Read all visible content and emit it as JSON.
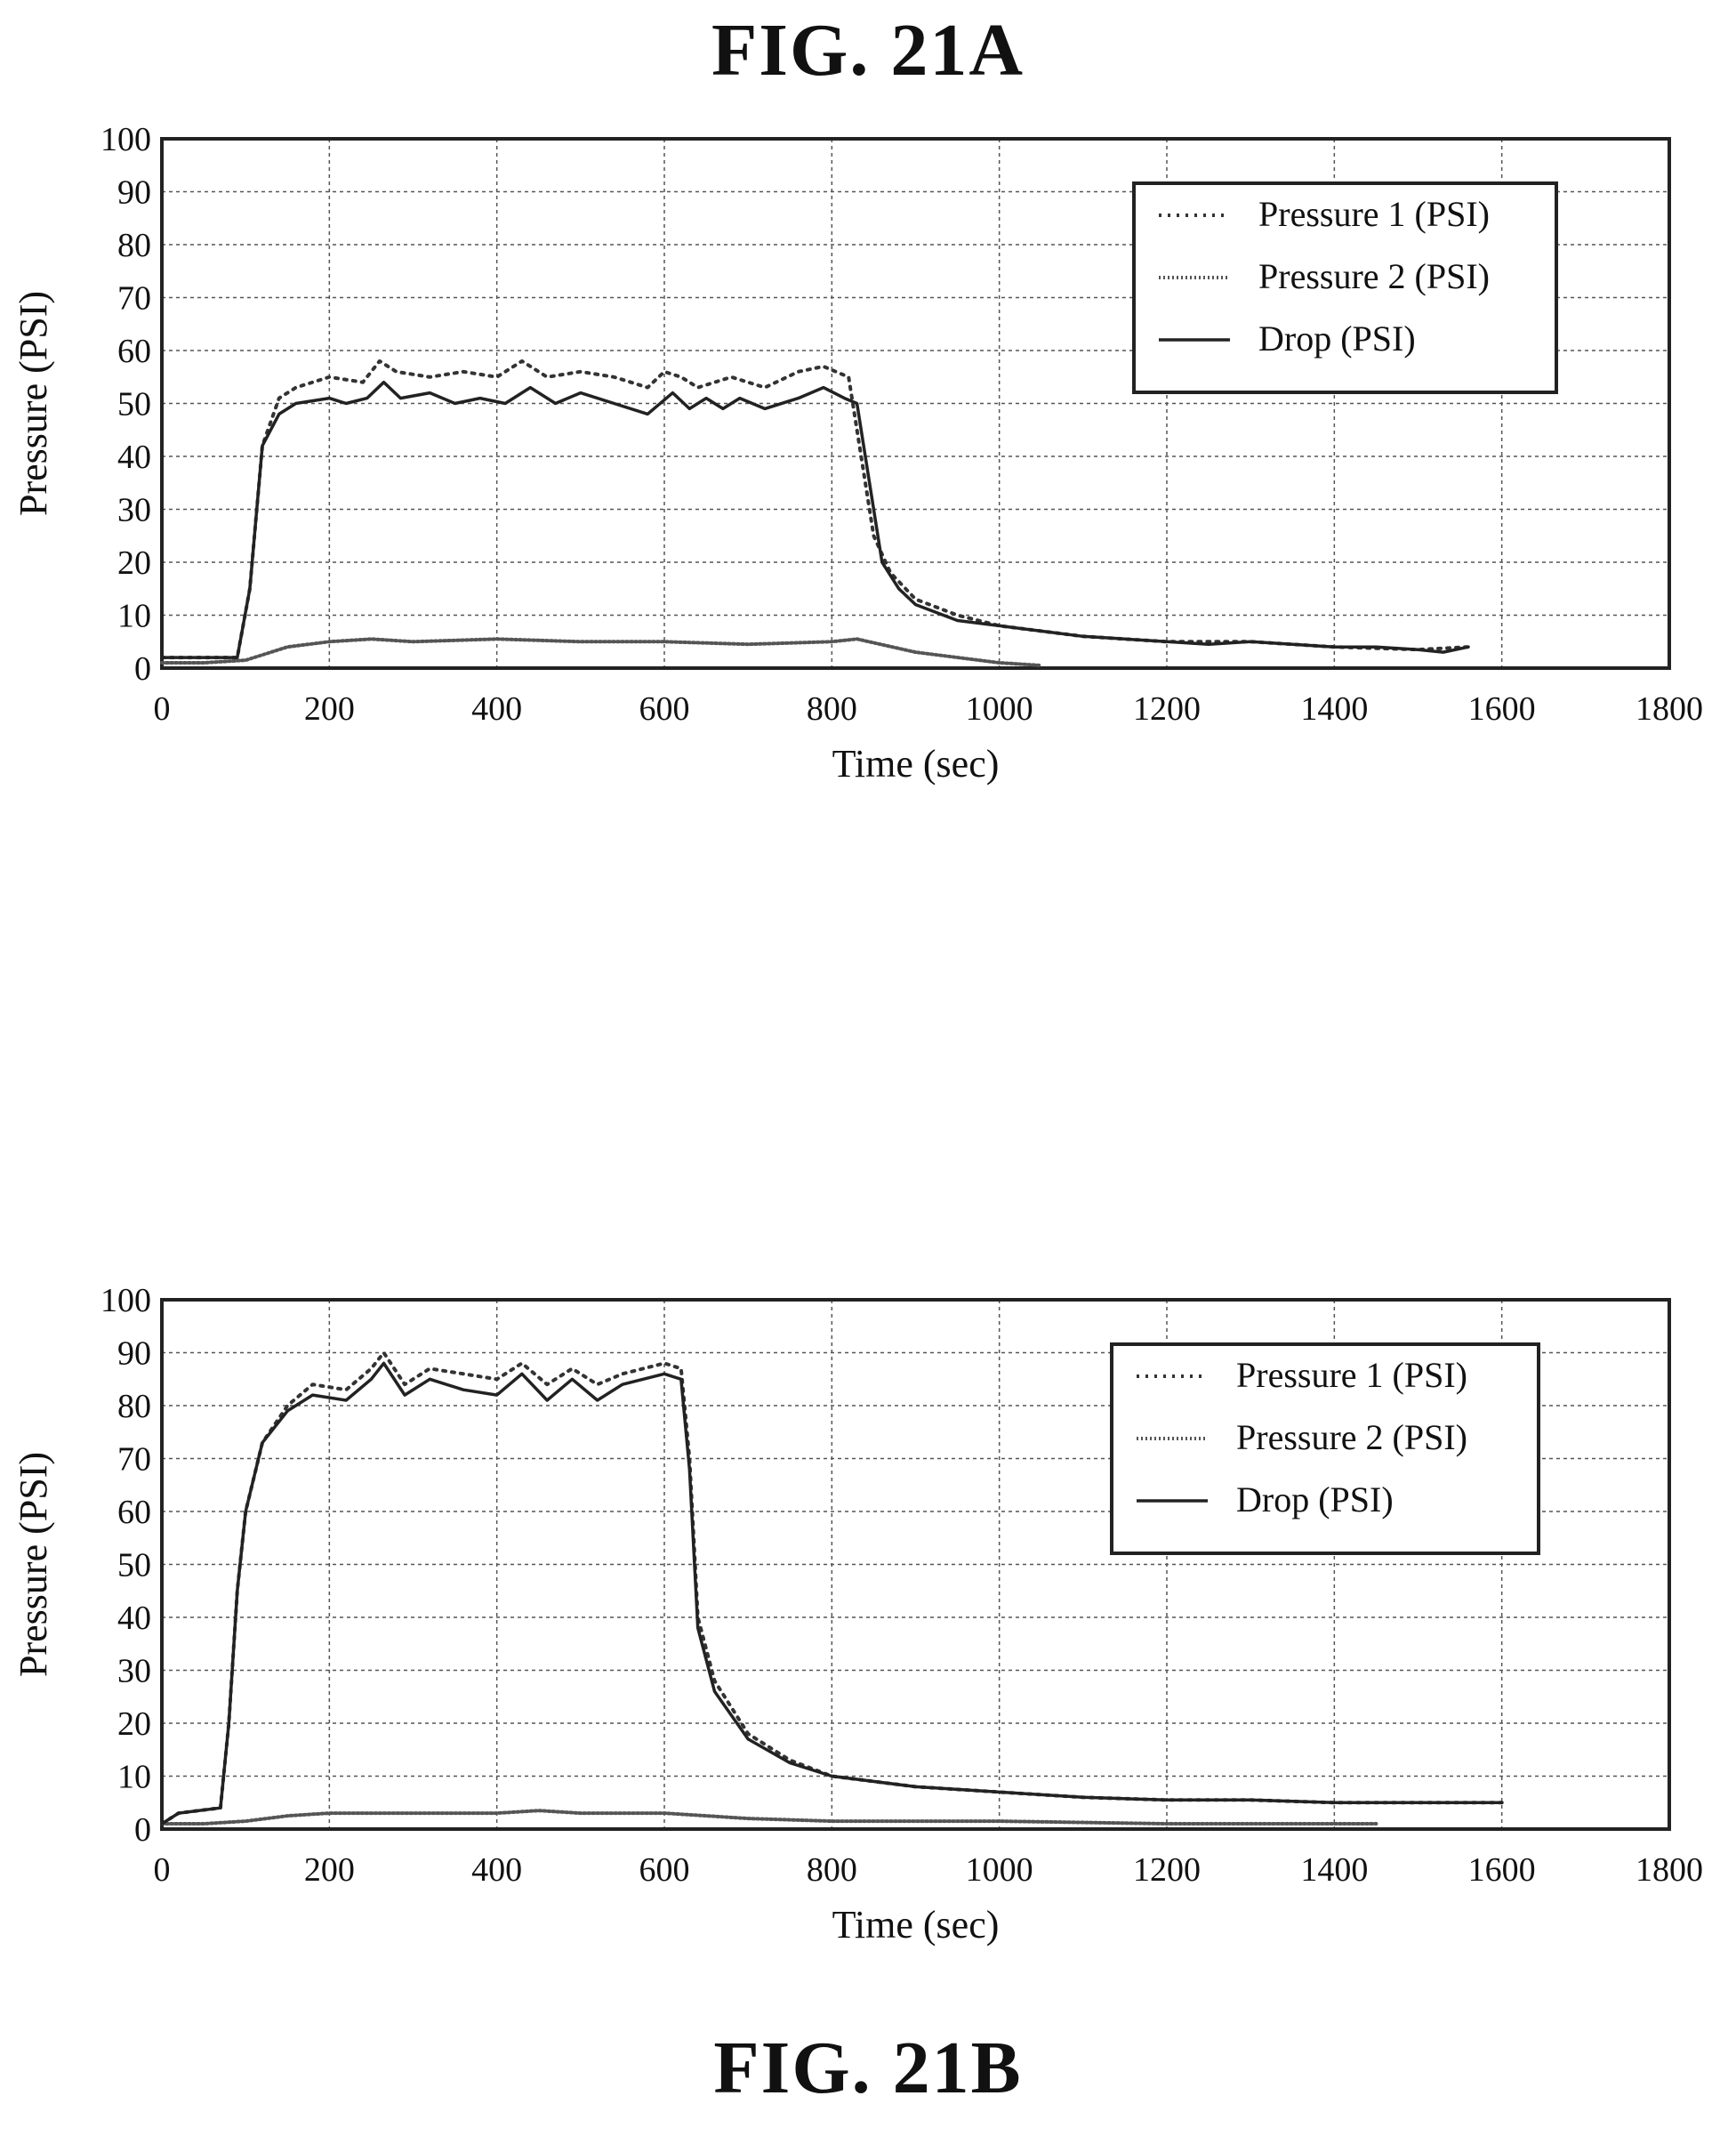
{
  "figures": {
    "top_title": "FIG. 21A",
    "bottom_title": "FIG. 21B"
  },
  "chart_data": [
    {
      "type": "line",
      "title": "FIG. 21A",
      "xlabel": "Time (sec)",
      "ylabel": "Pressure (PSI)",
      "xlim": [
        0,
        1800
      ],
      "ylim": [
        0,
        100
      ],
      "xticks": [
        0,
        200,
        400,
        600,
        800,
        1000,
        1200,
        1400,
        1600,
        1800
      ],
      "yticks": [
        0,
        10,
        20,
        30,
        40,
        50,
        60,
        70,
        80,
        90,
        100
      ],
      "grid": true,
      "legend_position": "top-right",
      "series": [
        {
          "name": "Pressure 1 (PSI)",
          "style": "dotted",
          "x": [
            0,
            50,
            90,
            105,
            120,
            140,
            160,
            200,
            240,
            260,
            280,
            320,
            360,
            400,
            430,
            460,
            500,
            540,
            580,
            600,
            620,
            640,
            680,
            720,
            760,
            790,
            820,
            835,
            850,
            870,
            900,
            950,
            1000,
            1100,
            1200,
            1300,
            1400,
            1500,
            1560
          ],
          "values": [
            2,
            2,
            2,
            15,
            42,
            51,
            53,
            55,
            54,
            58,
            56,
            55,
            56,
            55,
            58,
            55,
            56,
            55,
            53,
            56,
            55,
            53,
            55,
            53,
            56,
            57,
            55,
            40,
            25,
            18,
            13,
            10,
            8,
            6,
            5,
            5,
            4,
            3.5,
            4
          ]
        },
        {
          "name": "Pressure 2 (PSI)",
          "style": "dense-dotted",
          "x": [
            0,
            50,
            100,
            150,
            200,
            250,
            300,
            400,
            500,
            600,
            700,
            800,
            830,
            900,
            1000,
            1050
          ],
          "values": [
            1,
            1,
            1.5,
            4,
            5,
            5.5,
            5,
            5.5,
            5,
            5,
            4.5,
            5,
            5.5,
            3,
            1,
            0.5
          ]
        },
        {
          "name": "Drop (PSI)",
          "style": "solid",
          "x": [
            0,
            50,
            90,
            105,
            120,
            140,
            160,
            200,
            220,
            245,
            265,
            285,
            320,
            350,
            380,
            410,
            440,
            470,
            500,
            540,
            580,
            610,
            630,
            650,
            670,
            690,
            720,
            760,
            790,
            815,
            830,
            845,
            860,
            880,
            900,
            950,
            1000,
            1050,
            1100,
            1150,
            1200,
            1250,
            1300,
            1350,
            1400,
            1450,
            1500,
            1530,
            1560
          ],
          "values": [
            2,
            2,
            2,
            15,
            42,
            48,
            50,
            51,
            50,
            51,
            54,
            51,
            52,
            50,
            51,
            50,
            53,
            50,
            52,
            50,
            48,
            52,
            49,
            51,
            49,
            51,
            49,
            51,
            53,
            51,
            50,
            35,
            20,
            15,
            12,
            9,
            8,
            7,
            6,
            5.5,
            5,
            4.5,
            5,
            4.5,
            4,
            4,
            3.5,
            3,
            4
          ]
        }
      ]
    },
    {
      "type": "line",
      "title": "FIG. 21B",
      "xlabel": "Time (sec)",
      "ylabel": "Pressure (PSI)",
      "xlim": [
        0,
        1800
      ],
      "ylim": [
        0,
        100
      ],
      "xticks": [
        0,
        200,
        400,
        600,
        800,
        1000,
        1200,
        1400,
        1600,
        1800
      ],
      "yticks": [
        0,
        10,
        20,
        30,
        40,
        50,
        60,
        70,
        80,
        90,
        100
      ],
      "grid": true,
      "legend_position": "top-right",
      "series": [
        {
          "name": "Pressure 1 (PSI)",
          "style": "dotted",
          "x": [
            0,
            20,
            70,
            80,
            90,
            100,
            120,
            150,
            180,
            220,
            250,
            265,
            290,
            320,
            360,
            400,
            430,
            460,
            490,
            520,
            550,
            600,
            620,
            630,
            640,
            660,
            700,
            750,
            800,
            900,
            1000,
            1100,
            1200,
            1300,
            1400,
            1500,
            1600
          ],
          "values": [
            1,
            3,
            4,
            20,
            45,
            60,
            73,
            80,
            84,
            83,
            87,
            90,
            84,
            87,
            86,
            85,
            88,
            84,
            87,
            84,
            86,
            88,
            87,
            70,
            40,
            28,
            18,
            13,
            10,
            8,
            7,
            6,
            5.5,
            5.5,
            5,
            5,
            5
          ]
        },
        {
          "name": "Pressure 2 (PSI)",
          "style": "dense-dotted",
          "x": [
            0,
            50,
            100,
            150,
            200,
            300,
            400,
            450,
            500,
            600,
            650,
            700,
            800,
            900,
            1000,
            1200,
            1400,
            1450
          ],
          "values": [
            1,
            1,
            1.5,
            2.5,
            3,
            3,
            3,
            3.5,
            3,
            3,
            2.5,
            2,
            1.5,
            1.5,
            1.5,
            1,
            1,
            1
          ]
        },
        {
          "name": "Drop (PSI)",
          "style": "solid",
          "x": [
            0,
            20,
            70,
            80,
            90,
            100,
            120,
            150,
            180,
            220,
            250,
            265,
            290,
            320,
            360,
            400,
            430,
            460,
            490,
            520,
            550,
            600,
            620,
            630,
            640,
            660,
            700,
            750,
            800,
            900,
            1000,
            1100,
            1200,
            1300,
            1400,
            1500,
            1600
          ],
          "values": [
            1,
            3,
            4,
            20,
            45,
            60,
            73,
            79,
            82,
            81,
            85,
            88,
            82,
            85,
            83,
            82,
            86,
            81,
            85,
            81,
            84,
            86,
            85,
            68,
            38,
            26,
            17,
            12.5,
            10,
            8,
            7,
            6,
            5.5,
            5.5,
            5,
            5,
            5
          ]
        }
      ]
    }
  ]
}
